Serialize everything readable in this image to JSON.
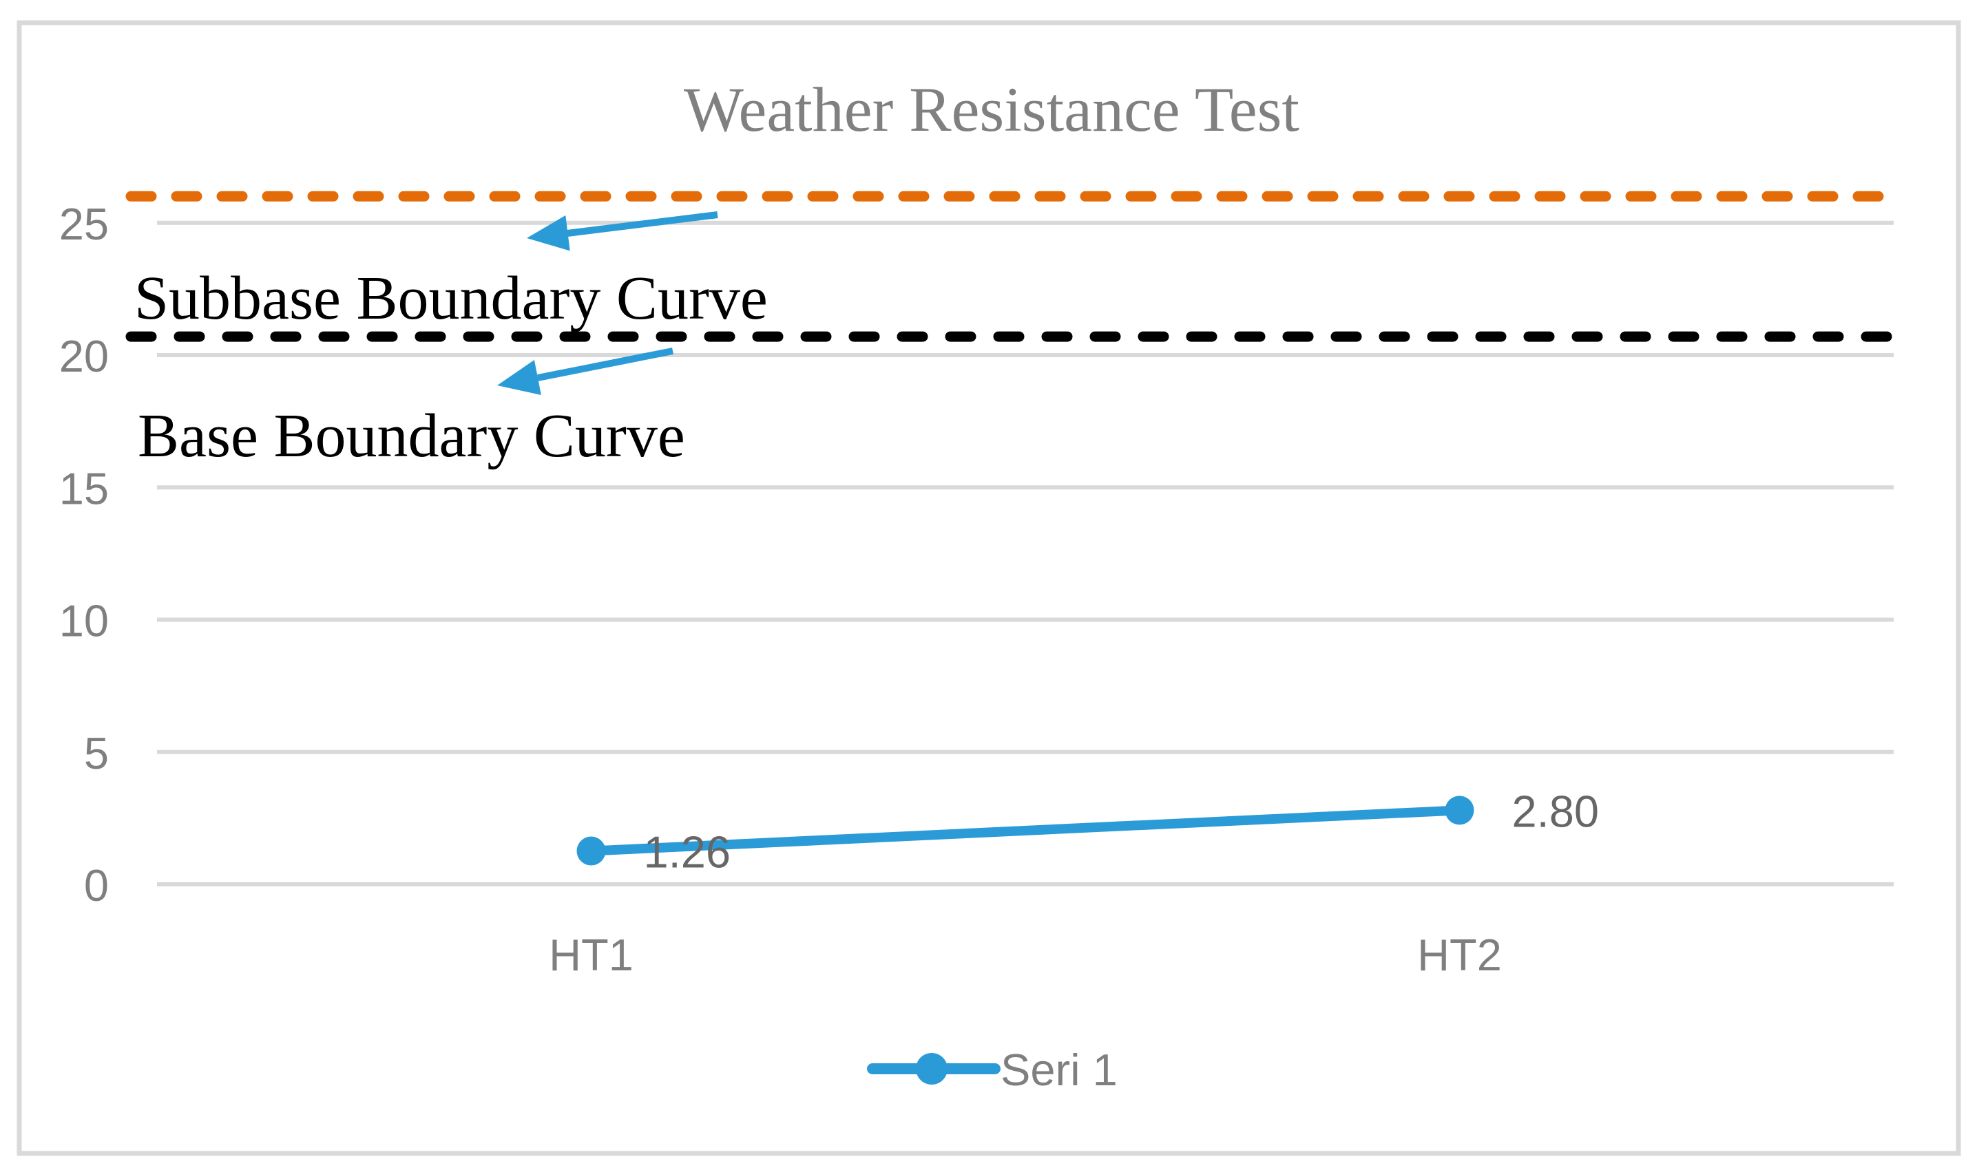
{
  "title": "Weather Resistance Test",
  "annotations": {
    "subbase_label": "Subbase Boundary Curve",
    "base_label": "Base Boundary Curve"
  },
  "legend": {
    "series_label": "Seri 1"
  },
  "chart_data": {
    "type": "line",
    "title": "Weather Resistance Test",
    "categories": [
      "HT1",
      "HT2"
    ],
    "series": [
      {
        "name": "Seri 1",
        "values": [
          1.26,
          2.8
        ]
      }
    ],
    "data_labels": [
      "1.26",
      "2.80"
    ],
    "yticks": [
      0,
      5,
      10,
      15,
      20,
      25
    ],
    "ylim": [
      0,
      27
    ],
    "grid": true,
    "legend_position": "bottom",
    "reference_lines": [
      {
        "name": "Subbase Boundary Curve",
        "value": 26.0,
        "color": "#E36C09",
        "style": "dashed"
      },
      {
        "name": "Base Boundary Curve",
        "value": 20.7,
        "color": "#000000",
        "style": "dashed"
      }
    ]
  },
  "colors": {
    "series": "#2B9BD7",
    "subbase_line": "#E36C09",
    "base_line": "#000000",
    "gridline": "#D9D9D9",
    "frame_border": "#D9D9D9",
    "axis_text": "#7F7F7F",
    "title_text": "#808080",
    "annotation_text": "#000000",
    "data_label_text": "#666666",
    "arrow": "#2B9BD7"
  }
}
